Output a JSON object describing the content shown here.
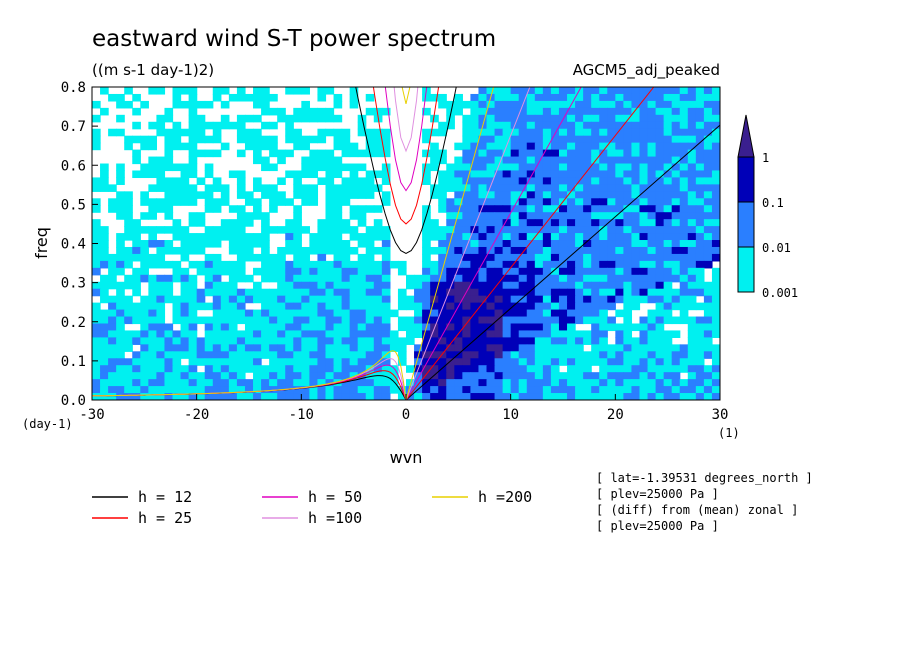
{
  "chart_data": {
    "type": "heatmap",
    "title": "eastward wind S-T power spectrum",
    "subtitle": "((m s-1 day-1)2)",
    "label_right": "AGCM5_adj_peaked",
    "xlabel": "wvn",
    "ylabel": "freq",
    "x_unit": "(1)",
    "y_unit": "(day-1)",
    "xlim": [
      -30,
      30
    ],
    "ylim": [
      0,
      0.8
    ],
    "x_ticks": [
      "-30",
      "-20",
      "-10",
      "0",
      "10",
      "20",
      "30"
    ],
    "y_ticks": [
      "0.0",
      "0.1",
      "0.2",
      "0.3",
      "0.4",
      "0.5",
      "0.6",
      "0.7",
      "0.8"
    ],
    "colorbar": {
      "levels": [
        "0.001",
        "0.01",
        "0.1",
        "1"
      ],
      "colors": [
        "#00f0f0",
        "#2a7fff",
        "#0000b8",
        "#3a1f8f"
      ],
      "below_color": "#ffffff"
    },
    "dispersion_curves": [
      {
        "label": "h = 12",
        "h": 12,
        "color": "#000000"
      },
      {
        "label": "h = 25",
        "h": 25,
        "color": "#ff0000"
      },
      {
        "label": "h = 50",
        "h": 50,
        "color": "#e000c0"
      },
      {
        "label": "h =100",
        "h": 100,
        "color": "#e090e0"
      },
      {
        "label": "h =200",
        "h": 200,
        "color": "#e8d000"
      }
    ],
    "annotations": [
      "[ lat=-1.39531 degrees_north ]",
      "[ plev=25000 Pa ]",
      "[ (diff) from (mean) zonal ]",
      "[ plev=25000 Pa ]"
    ]
  }
}
